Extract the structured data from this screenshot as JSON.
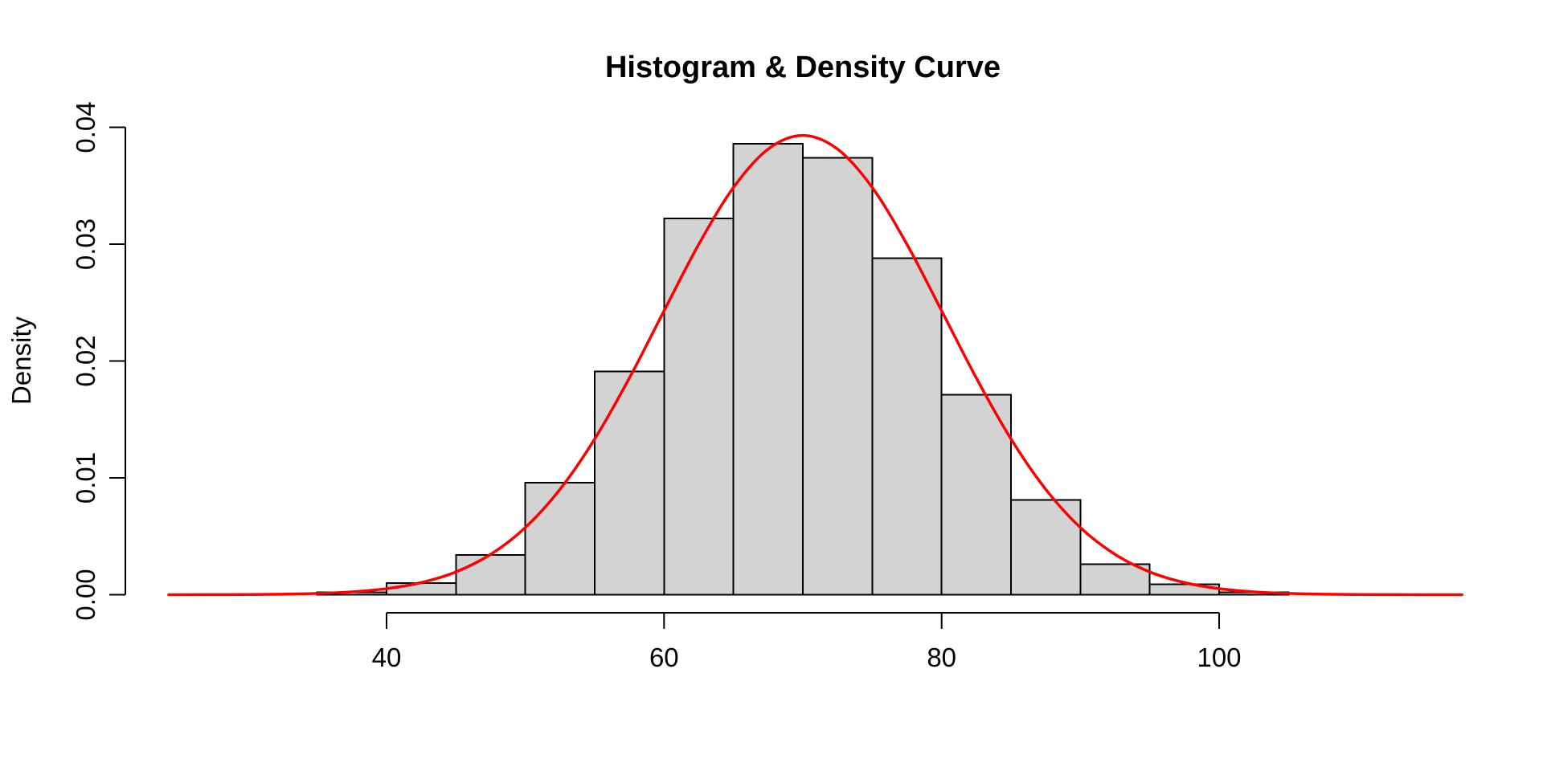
{
  "figure": {
    "title": "Histogram & Density Curve",
    "y_axis_label": "Density",
    "background_color": "#ffffff",
    "text_color": "#000000"
  },
  "chart_data": {
    "type": "histogram_with_density_curve",
    "title": "Histogram & Density Curve",
    "xlabel": "",
    "ylabel": "Density",
    "grid": false,
    "legend": false,
    "xlim": [
      24,
      118
    ],
    "ylim": [
      0,
      0.04
    ],
    "x_ticks": [
      40,
      60,
      80,
      100
    ],
    "x_tick_labels": [
      "40",
      "60",
      "80",
      "100"
    ],
    "y_ticks": [
      0,
      0.01,
      0.02,
      0.03,
      0.04
    ],
    "y_tick_labels": [
      "0.00",
      "0.01",
      "0.02",
      "0.03",
      "0.04"
    ],
    "histogram": {
      "bin_start": 35,
      "bin_width": 5,
      "bin_edges": [
        35,
        40,
        45,
        50,
        55,
        60,
        65,
        70,
        75,
        80,
        85,
        90,
        95,
        100,
        105
      ],
      "bin_densities": [
        0.0002,
        0.001,
        0.0034,
        0.0096,
        0.0191,
        0.0322,
        0.0386,
        0.0374,
        0.0288,
        0.0171,
        0.0081,
        0.0026,
        0.0009,
        0.0002
      ],
      "bar_fill_color": "#d3d3d3",
      "bar_border_color": "#000000"
    },
    "density_curve": {
      "line_color": "#ff0000",
      "peak": {
        "x": 70,
        "density": 0.0393
      },
      "points_x": [
        24.3,
        25,
        27.5,
        30,
        32.5,
        35,
        37.5,
        40,
        42.5,
        45,
        47.5,
        50,
        52.5,
        55,
        57.5,
        60,
        62.5,
        65,
        67.5,
        70,
        72.5,
        75,
        77.5,
        80,
        82.5,
        85,
        87.5,
        90,
        92.5,
        95,
        97.5,
        100,
        102.5,
        105,
        107.5,
        110,
        112.5,
        115,
        117.5
      ],
      "points_density": [
        1e-06,
        2e-06,
        7e-06,
        1.8e-05,
        4.6e-05,
        0.000109,
        0.000245,
        0.000519,
        0.001039,
        0.00195,
        0.003453,
        0.005745,
        0.009023,
        0.013329,
        0.018547,
        0.024301,
        0.029992,
        0.034849,
        0.038135,
        0.0393,
        0.038135,
        0.034849,
        0.029992,
        0.024301,
        0.018547,
        0.013329,
        0.009023,
        0.005745,
        0.003453,
        0.00195,
        0.001039,
        0.000519,
        0.000245,
        0.000109,
        4.6e-05,
        1.8e-05,
        7e-06,
        2e-06,
        1e-06
      ]
    },
    "axis_color": "#000000"
  }
}
